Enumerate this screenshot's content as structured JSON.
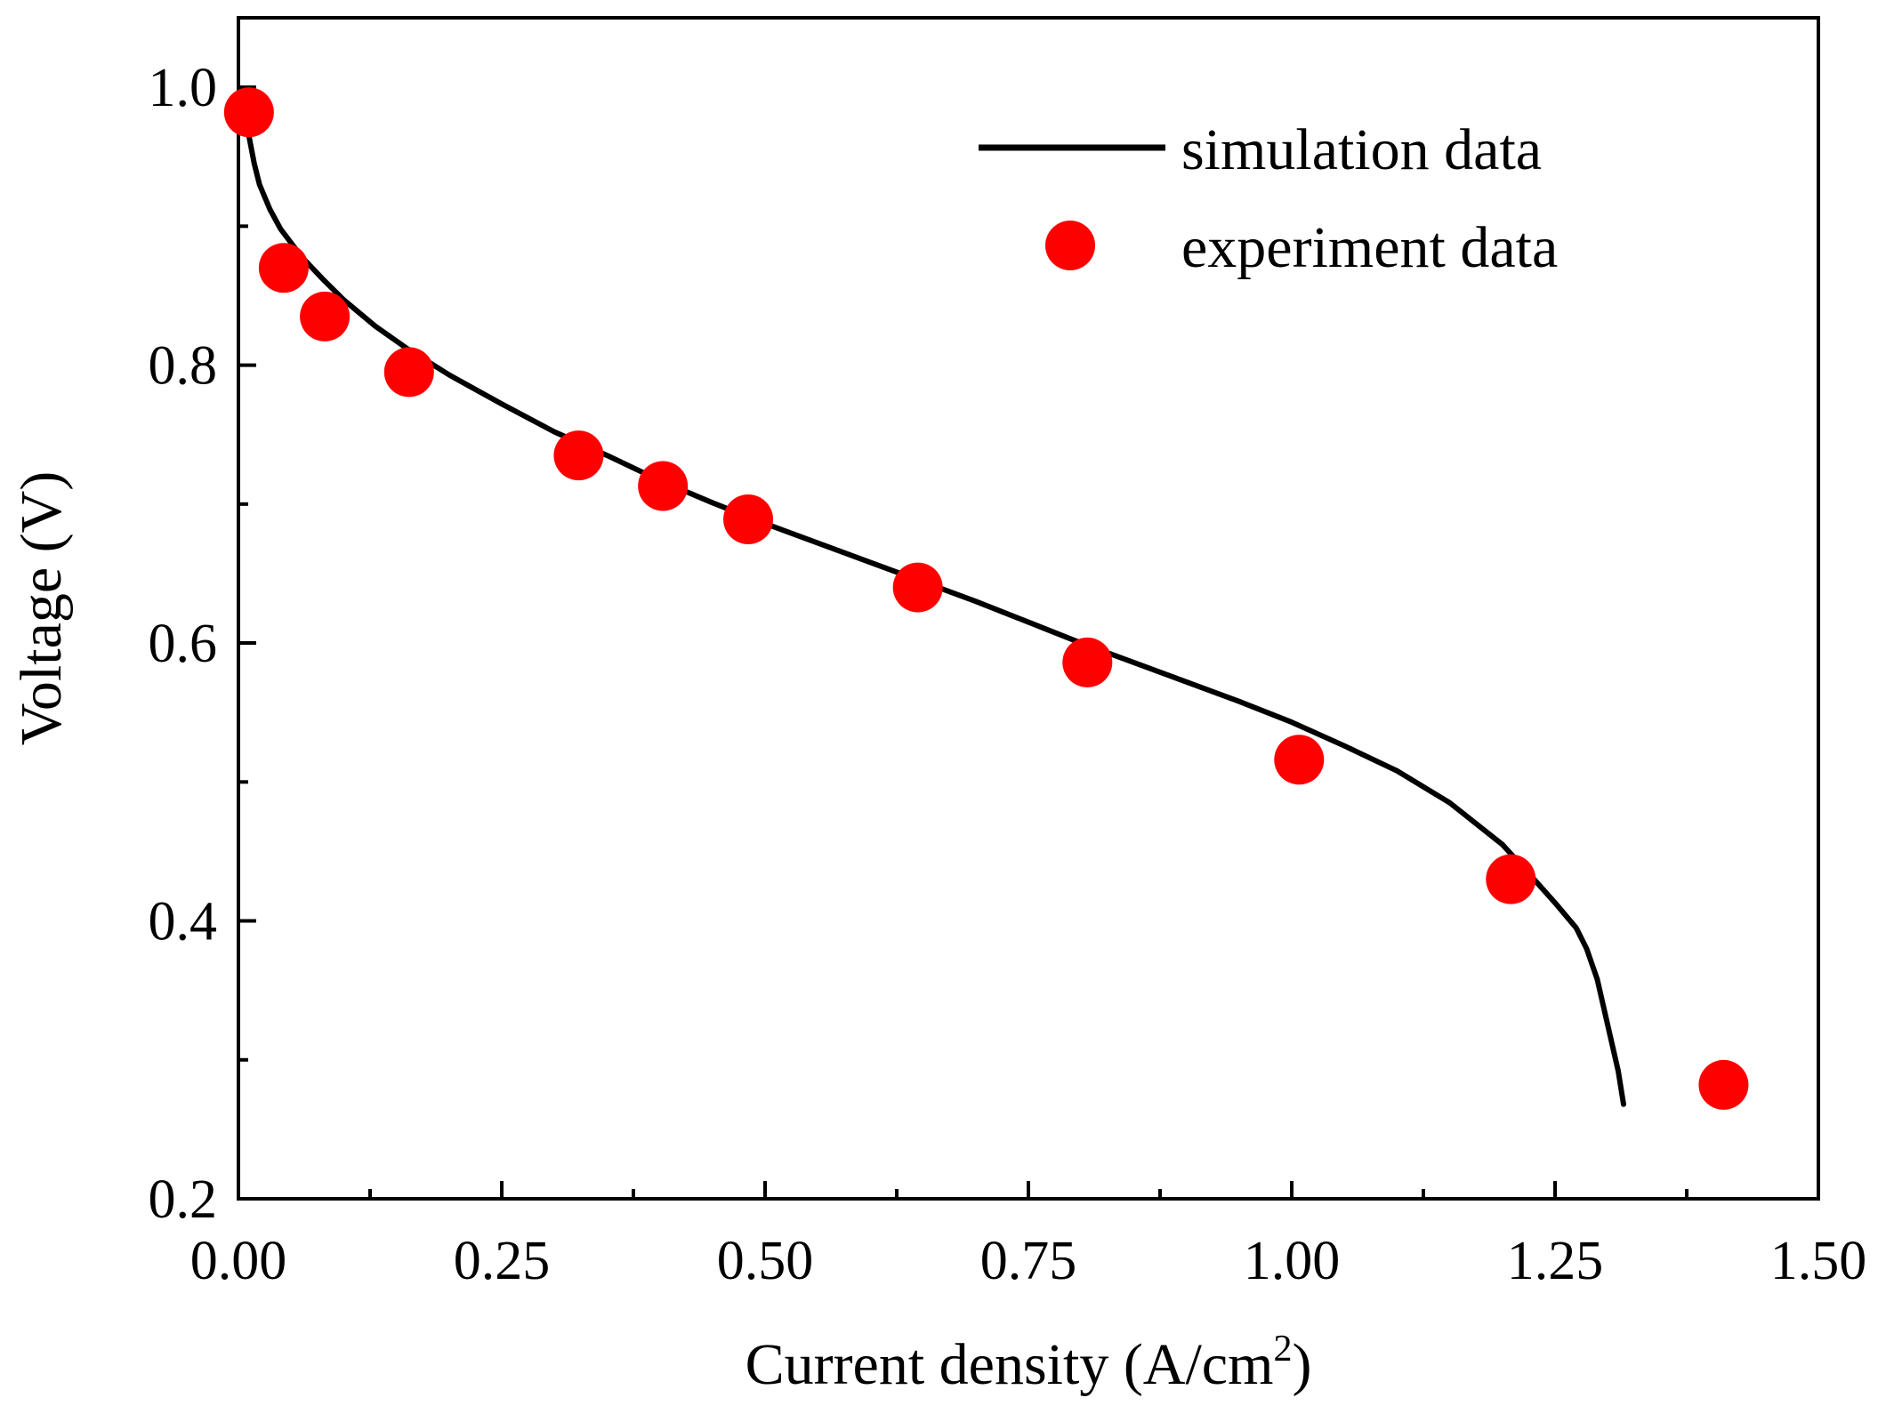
{
  "chart_data": {
    "type": "line",
    "title": "",
    "xlabel": "Current density (A/cm",
    "xlabel_sup": "2",
    "xlabel_close": ")",
    "ylabel": "Voltage (V)",
    "xlim": [
      0.0,
      1.5
    ],
    "ylim": [
      0.2,
      1.05
    ],
    "x_ticks": [
      0.0,
      0.25,
      0.5,
      0.75,
      1.0,
      1.25,
      1.5
    ],
    "x_tick_labels": [
      "0.00",
      "0.25",
      "0.50",
      "0.75",
      "1.00",
      "1.25",
      "1.50"
    ],
    "x_minor_ticks": [
      0.125,
      0.375,
      0.625,
      0.875,
      1.125,
      1.375
    ],
    "y_ticks": [
      0.2,
      0.4,
      0.6,
      0.8,
      1.0
    ],
    "y_tick_labels": [
      "0.2",
      "0.4",
      "0.6",
      "0.8",
      "1.0"
    ],
    "y_minor_ticks": [
      0.3,
      0.5,
      0.7,
      0.9
    ],
    "grid": false,
    "legend_position": "top-right",
    "series": [
      {
        "name": "simulation data",
        "kind": "line",
        "color": "#000000",
        "x": [
          0.005,
          0.01,
          0.015,
          0.02,
          0.03,
          0.04,
          0.06,
          0.08,
          0.1,
          0.13,
          0.16,
          0.2,
          0.25,
          0.3,
          0.35,
          0.4,
          0.45,
          0.5,
          0.55,
          0.6,
          0.65,
          0.7,
          0.75,
          0.8,
          0.85,
          0.9,
          0.95,
          1.0,
          1.05,
          1.1,
          1.15,
          1.2,
          1.23,
          1.25,
          1.27,
          1.28,
          1.29,
          1.3,
          1.31,
          1.315
        ],
        "y": [
          0.985,
          0.965,
          0.945,
          0.93,
          0.912,
          0.898,
          0.878,
          0.862,
          0.847,
          0.828,
          0.812,
          0.793,
          0.772,
          0.752,
          0.735,
          0.717,
          0.701,
          0.686,
          0.672,
          0.658,
          0.644,
          0.63,
          0.615,
          0.6,
          0.586,
          0.572,
          0.558,
          0.543,
          0.526,
          0.508,
          0.485,
          0.455,
          0.43,
          0.413,
          0.395,
          0.38,
          0.358,
          0.325,
          0.292,
          0.268
        ]
      },
      {
        "name": "experiment data",
        "kind": "scatter",
        "color": "#ff0000",
        "x": [
          0.01,
          0.043,
          0.082,
          0.162,
          0.323,
          0.403,
          0.484,
          0.645,
          0.806,
          1.007,
          1.208,
          1.41
        ],
        "y": [
          0.982,
          0.87,
          0.835,
          0.795,
          0.735,
          0.713,
          0.689,
          0.64,
          0.586,
          0.516,
          0.43,
          0.282
        ]
      }
    ]
  }
}
